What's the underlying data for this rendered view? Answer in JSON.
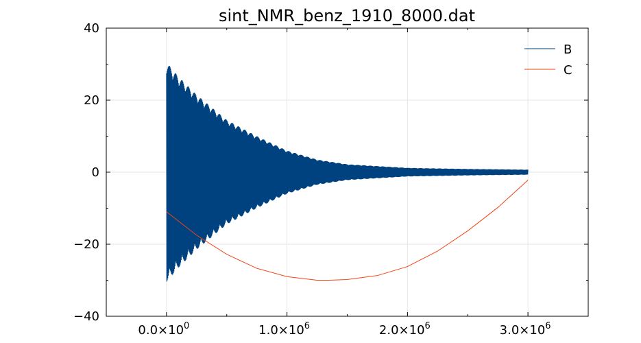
{
  "chart_data": {
    "type": "line",
    "title": "sint_NMR_benz_1910_8000.dat",
    "xlim": [
      -500000,
      3500000
    ],
    "ylim": [
      -40,
      40
    ],
    "x_ticks": [
      {
        "value": 0,
        "mantissa": "0.0×10",
        "exp": "0"
      },
      {
        "value": 1000000,
        "mantissa": "1.0×10",
        "exp": "6"
      },
      {
        "value": 2000000,
        "mantissa": "2.0×10",
        "exp": "6"
      },
      {
        "value": 3000000,
        "mantissa": "3.0×10",
        "exp": "6"
      }
    ],
    "y_ticks": [
      {
        "value": 40,
        "label": "40"
      },
      {
        "value": 20,
        "label": "20"
      },
      {
        "value": 0,
        "label": "0"
      },
      {
        "value": -20,
        "label": "−20"
      },
      {
        "value": -40,
        "label": "−40"
      }
    ],
    "grid": true,
    "legend_position": "top-right",
    "series": [
      {
        "name": "B",
        "color": "#00427f",
        "style": "oscillating-decay-envelope",
        "x": [
          0,
          100000,
          250000,
          500000,
          750000,
          1000000,
          1250000,
          1500000,
          2000000,
          2500000,
          3000000
        ],
        "upper": [
          30.5,
          26.5,
          21.5,
          14.5,
          10.0,
          6.0,
          3.5,
          2.2,
          1.2,
          0.9,
          0.7
        ],
        "lower": [
          -30.5,
          -26.5,
          -21.5,
          -14.5,
          -10.0,
          -6.0,
          -3.5,
          -2.2,
          -1.2,
          -0.9,
          -0.7
        ]
      },
      {
        "name": "C",
        "color": "#f24418",
        "x": [
          0,
          250000,
          500000,
          750000,
          1000000,
          1250000,
          1350000,
          1500000,
          1750000,
          2000000,
          2250000,
          2500000,
          2750000,
          3000000
        ],
        "values": [
          -11,
          -17.5,
          -22.8,
          -26.7,
          -29,
          -30,
          -30,
          -29.8,
          -28.7,
          -26.2,
          -21.9,
          -16.3,
          -9.8,
          -2.2
        ]
      }
    ]
  }
}
